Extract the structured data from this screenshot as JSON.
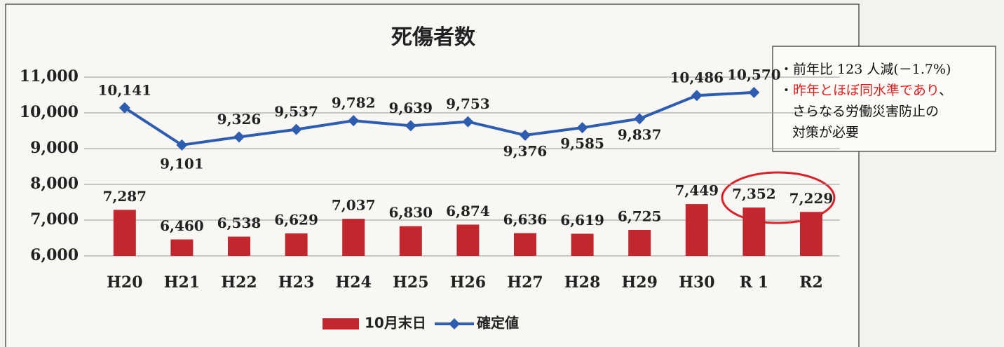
{
  "chart_data": {
    "type": "bar_line",
    "title": "死傷者数",
    "categories": [
      "H20",
      "H21",
      "H22",
      "H23",
      "H24",
      "H25",
      "H26",
      "H27",
      "H28",
      "H29",
      "H30",
      "R 1",
      "R2"
    ],
    "series": [
      {
        "name": "10月末日",
        "type": "bar",
        "color": "#c1272d",
        "values": [
          7287,
          6460,
          6538,
          6629,
          7037,
          6830,
          6874,
          6636,
          6619,
          6725,
          7449,
          7352,
          7229
        ],
        "value_labels": [
          "7,287",
          "6,460",
          "6,538",
          "6,629",
          "7,037",
          "6,830",
          "6,874",
          "6,636",
          "6,619",
          "6,725",
          "7,449",
          "7,352",
          "7,229"
        ]
      },
      {
        "name": "確定値",
        "type": "line",
        "color": "#2e5db0",
        "values": [
          10141,
          9101,
          9326,
          9537,
          9782,
          9639,
          9753,
          9376,
          9585,
          9837,
          10486,
          10570,
          null
        ],
        "value_labels": [
          "10,141",
          "9,101",
          "9,326",
          "9,537",
          "9,782",
          "9,639",
          "9,753",
          "9,376",
          "9,585",
          "9,837",
          "10,486",
          "10,570",
          null
        ]
      }
    ],
    "ylim": [
      6000,
      11000
    ],
    "yticks": [
      {
        "value": 6000,
        "label": "6,000"
      },
      {
        "value": 7000,
        "label": "7,000"
      },
      {
        "value": 8000,
        "label": "8,000"
      },
      {
        "value": 9000,
        "label": "9,000"
      },
      {
        "value": 10000,
        "label": "10,000"
      },
      {
        "value": 11000,
        "label": "11,000"
      }
    ],
    "grid": true,
    "legend": "bottom",
    "annotation": [
      [
        {
          "text": "・前年比 123 人減(－1.7%)",
          "color": "#111111"
        }
      ],
      [
        {
          "text": "・",
          "color": "#111111"
        },
        {
          "text": "昨年とほぼ同水準であり",
          "color": "#e02020"
        },
        {
          "text": "、",
          "color": "#111111"
        }
      ],
      [
        {
          "text": "さらなる労働災害防止の",
          "color": "#111111"
        }
      ],
      [
        {
          "text": "対策が必要",
          "color": "#111111"
        }
      ]
    ]
  }
}
